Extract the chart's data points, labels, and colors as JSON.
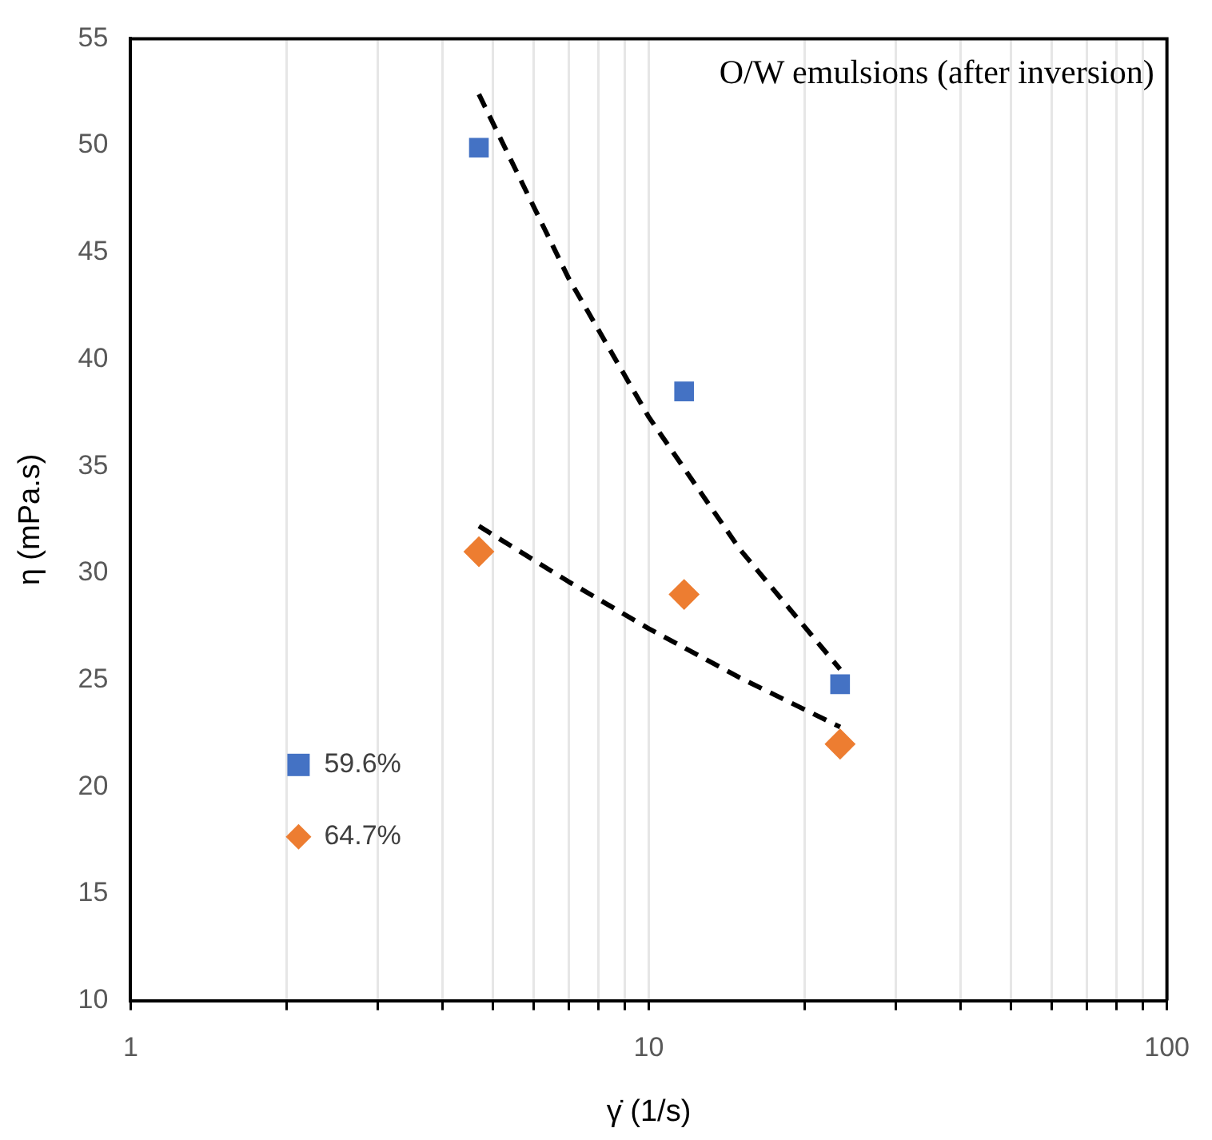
{
  "chart_data": {
    "type": "scatter",
    "xlabel": "γ̇ (1/s)",
    "ylabel": "η (mPa.s)",
    "annotations": [
      "O/W emulsions (after inversion)"
    ],
    "log": "x",
    "grid": "x",
    "legend": "left",
    "xlim": [
      1,
      100
    ],
    "xticks": [
      1,
      {
        "value": 2,
        "label": null
      },
      {
        "value": 3,
        "label": null
      },
      {
        "value": 4,
        "label": null
      },
      {
        "value": 5,
        "label": null
      },
      {
        "value": 6,
        "label": null
      },
      {
        "value": 7,
        "label": null
      },
      {
        "value": 8,
        "label": null
      },
      {
        "value": 9,
        "label": null
      },
      10,
      {
        "value": 20,
        "label": null
      },
      {
        "value": 30,
        "label": null
      },
      {
        "value": 40,
        "label": null
      },
      {
        "value": 50,
        "label": null
      },
      {
        "value": 60,
        "label": null
      },
      {
        "value": 70,
        "label": null
      },
      {
        "value": 80,
        "label": null
      },
      {
        "value": 90,
        "label": null
      },
      100
    ],
    "ylim": [
      10,
      55
    ],
    "yticks": [
      10,
      15,
      20,
      25,
      30,
      35,
      40,
      45,
      50,
      55
    ],
    "series": [
      {
        "name": "59.6%",
        "color": "#4472c4",
        "marker": "square",
        "x": [
          4.7,
          11.7,
          23.4
        ],
        "values": [
          49.9,
          38.5,
          24.8
        ]
      },
      {
        "name": "64.7%",
        "color": "#ed7d31",
        "marker": "diamond",
        "x": [
          4.7,
          11.7,
          23.4
        ],
        "values": [
          31.0,
          29.0,
          22.0
        ]
      },
      {
        "type": "line",
        "color": "#000000",
        "marker": "none",
        "line_style": "dashed",
        "x": [
          4.7,
          7,
          10,
          15,
          23.4
        ],
        "values": [
          52.4,
          43.8,
          37.3,
          31.1,
          25.5
        ]
      },
      {
        "type": "line",
        "color": "#000000",
        "marker": "none",
        "line_style": "dashed",
        "x": [
          4.7,
          7,
          10,
          15,
          23.4
        ],
        "values": [
          32.2,
          29.6,
          27.4,
          25.1,
          22.8
        ]
      }
    ]
  }
}
